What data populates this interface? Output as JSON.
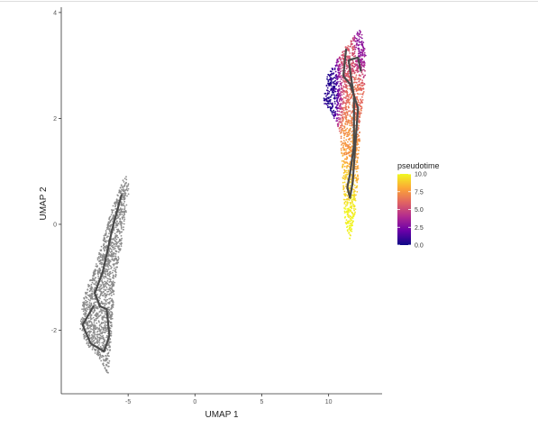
{
  "chart_data": {
    "type": "scatter",
    "title": "",
    "xlabel": "UMAP 1",
    "ylabel": "UMAP 2",
    "xlim": [
      -10,
      14
    ],
    "ylim": [
      -3.2,
      4.1
    ],
    "x_ticks": [
      -5,
      0,
      5,
      10
    ],
    "y_ticks": [
      -2,
      0,
      2,
      4
    ],
    "x_tick_labels": [
      "-5",
      "0",
      "5",
      "10"
    ],
    "y_tick_labels": [
      "-2",
      "0",
      "2",
      "4"
    ],
    "grid": false,
    "legend": {
      "title": "pseudotime",
      "placement": "right",
      "type": "colorbar",
      "range": [
        0,
        10.0
      ],
      "ticks": [
        0,
        2.5,
        5,
        7.5,
        10
      ],
      "tick_labels": [
        "0.0",
        "2.5",
        "5.0",
        "7.5",
        "10.0"
      ],
      "colors": [
        "#0d0887",
        "#6a00a8",
        "#b12a90",
        "#e16462",
        "#fca636",
        "#f0f921"
      ]
    },
    "point_clouds": [
      {
        "colored_by": "none",
        "color": "#8c8c8c",
        "approx_extent": {
          "x": [
            -8.6,
            -5.2
          ],
          "y": [
            -2.8,
            0.95
          ]
        },
        "outline": [
          [
            -5.2,
            0.95
          ],
          [
            -4.9,
            0.7
          ],
          [
            -5.1,
            0.3
          ],
          [
            -5.5,
            -0.4
          ],
          [
            -6.0,
            -1.1
          ],
          [
            -6.2,
            -1.9
          ],
          [
            -6.4,
            -2.6
          ],
          [
            -6.5,
            -2.85
          ],
          [
            -7.2,
            -2.5
          ],
          [
            -8.0,
            -2.3
          ],
          [
            -8.6,
            -2.0
          ],
          [
            -8.4,
            -1.4
          ],
          [
            -7.6,
            -0.9
          ],
          [
            -6.9,
            -0.3
          ],
          [
            -6.2,
            0.3
          ]
        ]
      },
      {
        "colored_by": "pseudotime",
        "approx_extent": {
          "x": [
            9.6,
            12.6
          ],
          "y": [
            -0.3,
            3.7
          ]
        },
        "outline": [
          [
            12.4,
            3.7
          ],
          [
            12.8,
            3.2
          ],
          [
            12.7,
            2.6
          ],
          [
            12.4,
            2.0
          ],
          [
            12.3,
            1.4
          ],
          [
            12.2,
            0.8
          ],
          [
            12.0,
            0.2
          ],
          [
            11.6,
            -0.3
          ],
          [
            11.2,
            0.1
          ],
          [
            11.1,
            0.6
          ],
          [
            11.0,
            1.2
          ],
          [
            10.8,
            1.8
          ],
          [
            10.2,
            2.1
          ],
          [
            9.6,
            2.3
          ],
          [
            9.9,
            2.8
          ],
          [
            10.6,
            3.1
          ],
          [
            11.4,
            3.4
          ]
        ],
        "pseudotime_anchors": [
          {
            "x": 10.0,
            "y": 2.45,
            "t": 0.5
          },
          {
            "x": 11.6,
            "y": 3.3,
            "t": 5.5
          },
          {
            "x": 12.3,
            "y": 3.55,
            "t": 3.0
          },
          {
            "x": 12.0,
            "y": 2.3,
            "t": 6.5
          },
          {
            "x": 11.6,
            "y": 1.4,
            "t": 7.5
          },
          {
            "x": 11.4,
            "y": 0.8,
            "t": 8.8
          },
          {
            "x": 11.5,
            "y": 0.2,
            "t": 9.8
          },
          {
            "x": 11.6,
            "y": -0.15,
            "t": 10.0
          }
        ]
      }
    ],
    "trajectories": [
      {
        "color": "#4a4a4a",
        "points": [
          [
            -5.5,
            0.55
          ],
          [
            -6.1,
            0.0
          ],
          [
            -6.9,
            -0.9
          ],
          [
            -7.5,
            -1.3
          ],
          [
            -7.1,
            -1.55
          ],
          [
            -6.6,
            -1.6
          ],
          [
            -6.4,
            -2.1
          ],
          [
            -6.8,
            -2.4
          ],
          [
            -7.8,
            -2.25
          ],
          [
            -8.4,
            -1.9
          ],
          [
            -7.6,
            -1.55
          ]
        ]
      },
      {
        "color": "#4a4a4a",
        "points": [
          [
            11.3,
            3.3
          ],
          [
            11.1,
            2.8
          ],
          [
            11.6,
            2.65
          ],
          [
            12.2,
            2.2
          ],
          [
            12.0,
            1.5
          ],
          [
            11.8,
            0.8
          ],
          [
            11.6,
            0.5
          ],
          [
            11.4,
            0.7
          ],
          [
            11.6,
            0.95
          ],
          [
            11.9,
            1.5
          ],
          [
            11.9,
            2.4
          ],
          [
            11.5,
            3.1
          ],
          [
            12.2,
            3.15
          ],
          [
            12.4,
            2.9
          ]
        ]
      }
    ]
  }
}
